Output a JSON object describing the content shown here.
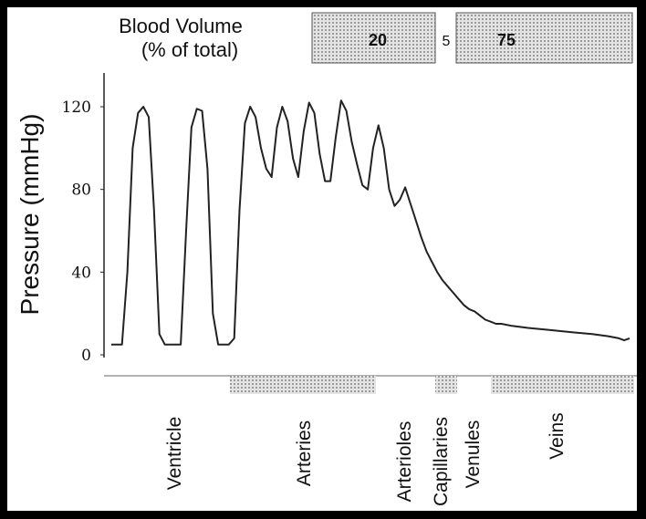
{
  "header": {
    "label_line1": "Blood Volume",
    "label_line2": "(% of total)",
    "arterial_value": "20",
    "capillary_value": "5",
    "venous_value": "75"
  },
  "chart_data": {
    "type": "line",
    "title": "",
    "xlabel": "",
    "ylabel": "Pressure (mmHg)",
    "ylim": [
      0,
      130
    ],
    "yticks": [
      0,
      40,
      80,
      120
    ],
    "grid": false,
    "segments": [
      "Ventricle",
      "Arteries",
      "Arterioles",
      "Capillaries",
      "Venules",
      "Veins"
    ],
    "series": [
      {
        "points": [
          [
            0,
            5
          ],
          [
            2,
            5
          ],
          [
            3,
            40
          ],
          [
            4,
            100
          ],
          [
            5,
            117
          ],
          [
            6,
            120
          ],
          [
            7,
            115
          ],
          [
            8,
            70
          ],
          [
            9,
            10
          ],
          [
            10,
            5
          ],
          [
            12,
            5
          ],
          [
            13,
            5
          ],
          [
            14,
            60
          ],
          [
            15,
            110
          ],
          [
            16,
            119
          ],
          [
            17,
            118
          ],
          [
            18,
            90
          ],
          [
            19,
            20
          ],
          [
            20,
            5
          ],
          [
            22,
            5
          ],
          [
            23,
            8
          ],
          [
            24,
            70
          ],
          [
            25,
            112
          ],
          [
            26,
            120
          ],
          [
            27,
            115
          ],
          [
            28,
            100
          ],
          [
            29,
            90
          ],
          [
            30,
            86
          ],
          [
            31,
            110
          ],
          [
            32,
            120
          ],
          [
            33,
            113
          ],
          [
            34,
            95
          ],
          [
            35,
            86
          ],
          [
            36,
            108
          ],
          [
            37,
            122
          ],
          [
            38,
            117
          ],
          [
            39,
            97
          ],
          [
            40,
            84
          ],
          [
            41,
            84
          ],
          [
            42,
            105
          ],
          [
            43,
            123
          ],
          [
            44,
            118
          ],
          [
            45,
            103
          ],
          [
            46,
            92
          ],
          [
            47,
            82
          ],
          [
            48,
            80
          ],
          [
            49,
            100
          ],
          [
            50,
            111
          ],
          [
            51,
            100
          ],
          [
            52,
            80
          ],
          [
            53,
            72
          ],
          [
            54,
            75
          ],
          [
            55,
            81
          ],
          [
            56,
            73
          ],
          [
            57,
            65
          ],
          [
            58,
            57
          ],
          [
            59,
            50
          ],
          [
            60,
            45
          ],
          [
            61,
            40
          ],
          [
            62,
            36
          ],
          [
            63,
            33
          ],
          [
            64,
            30
          ],
          [
            65,
            27
          ],
          [
            66,
            24
          ],
          [
            67,
            22
          ],
          [
            68,
            21
          ],
          [
            69,
            19
          ],
          [
            70,
            17
          ],
          [
            71,
            16
          ],
          [
            72,
            15
          ],
          [
            73,
            15
          ],
          [
            75,
            14
          ],
          [
            78,
            13
          ],
          [
            82,
            12
          ],
          [
            86,
            11
          ],
          [
            90,
            10
          ],
          [
            93,
            9
          ],
          [
            95,
            8
          ],
          [
            96,
            7
          ],
          [
            97,
            8
          ]
        ]
      }
    ]
  }
}
